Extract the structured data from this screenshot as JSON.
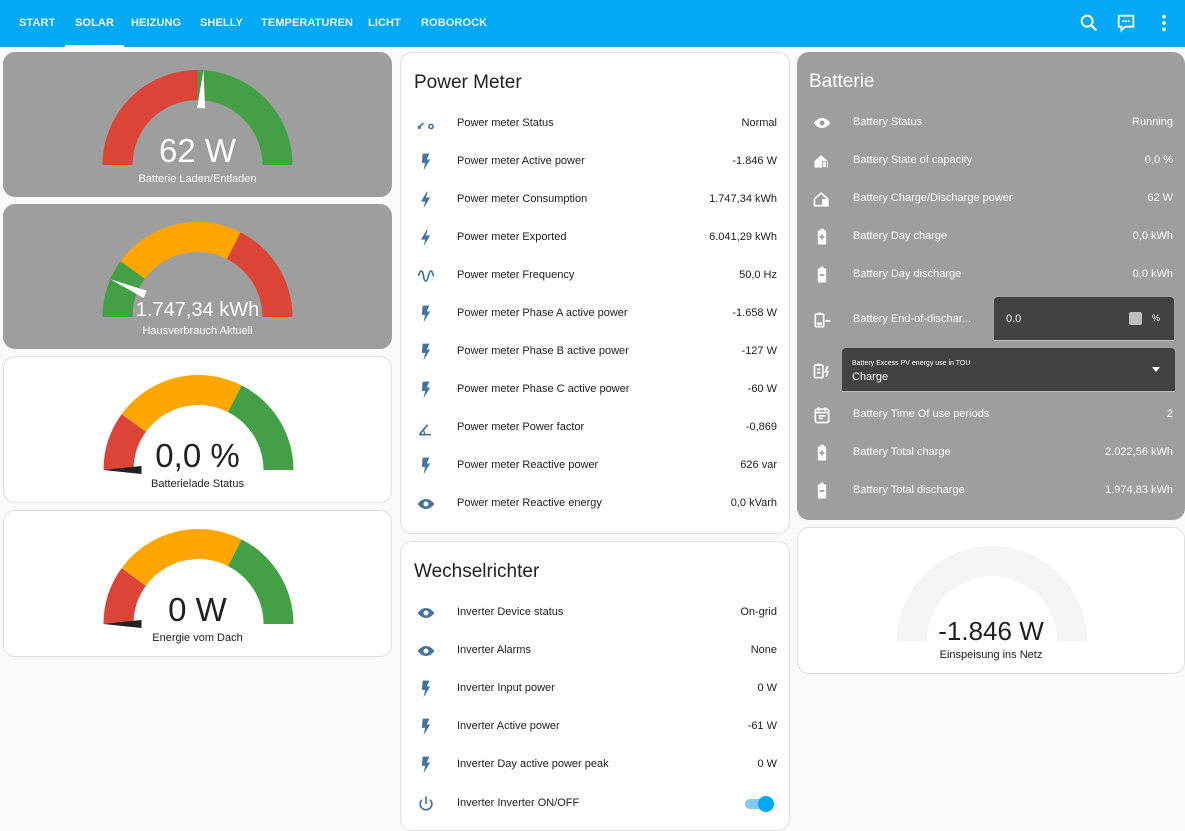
{
  "header": {
    "tabs": [
      "START",
      "SOLAR",
      "HEIZUNG",
      "SHELLY",
      "TEMPERATUREN",
      "LICHT",
      "ROBOROCK"
    ],
    "active_tab": "SOLAR",
    "icons": [
      "search-icon",
      "assist-icon",
      "more-icon"
    ]
  },
  "gauges": [
    {
      "value": "62 W",
      "name": "Batterie Laden/Entladen",
      "fraction": 0.52,
      "card": "grey"
    },
    {
      "value": "1.747,34 kWh",
      "name": "Hausverbrauch Aktuell",
      "fraction": 0.13,
      "card": "grey"
    },
    {
      "value": "0,0 %",
      "name": "Batterielade Status",
      "fraction": 0.0,
      "card": "white"
    },
    {
      "value": "0 W",
      "name": "Energie vom Dach",
      "fraction": 0.0,
      "card": "white"
    },
    {
      "value": "-1.846 W",
      "name": "Einspeisung ins Netz",
      "fraction": 0.0,
      "card": "white"
    }
  ],
  "power_meter": {
    "title": "Power Meter",
    "rows": [
      {
        "icon": "meter-status-icon",
        "label": "Power meter Status",
        "value": "Normal"
      },
      {
        "icon": "flash-icon",
        "label": "Power meter Active power",
        "value": "-1.846 W"
      },
      {
        "icon": "lightning-icon",
        "label": "Power meter Consumption",
        "value": "1.747,34 kWh"
      },
      {
        "icon": "lightning-icon",
        "label": "Power meter Exported",
        "value": "6.041,29 kWh"
      },
      {
        "icon": "sine-wave-icon",
        "label": "Power meter Frequency",
        "value": "50,0 Hz"
      },
      {
        "icon": "flash-icon",
        "label": "Power meter Phase A active power",
        "value": "-1.658 W"
      },
      {
        "icon": "flash-icon",
        "label": "Power meter Phase B active power",
        "value": "-127 W"
      },
      {
        "icon": "flash-icon",
        "label": "Power meter Phase C active power",
        "value": "-60 W"
      },
      {
        "icon": "angle-icon",
        "label": "Power meter Power factor",
        "value": "-0,869"
      },
      {
        "icon": "flash-icon",
        "label": "Power meter Reactive power",
        "value": "626 var"
      },
      {
        "icon": "eye-icon",
        "label": "Power meter Reactive energy",
        "value": "0,0 kVarh"
      }
    ]
  },
  "inverter": {
    "title": "Wechselrichter",
    "rows": [
      {
        "icon": "eye-icon",
        "label": "Inverter Device status",
        "value": "On-grid"
      },
      {
        "icon": "eye-icon",
        "label": "Inverter Alarms",
        "value": "None"
      },
      {
        "icon": "flash-icon",
        "label": "Inverter Input power",
        "value": "0 W"
      },
      {
        "icon": "flash-icon",
        "label": "Inverter Active power",
        "value": "-61 W"
      },
      {
        "icon": "flash-icon",
        "label": "Inverter Day active power peak",
        "value": "0 W"
      }
    ],
    "toggle": {
      "icon": "power-icon",
      "label": "Inverter Inverter ON/OFF",
      "state": "on"
    }
  },
  "battery": {
    "title": "Batterie",
    "status": {
      "label": "Battery Status",
      "value": "Running"
    },
    "soc": {
      "label": "Battery State of capacity",
      "value": "0,0 %"
    },
    "power": {
      "label": "Battery Charge/Discharge power",
      "value": "62 W"
    },
    "day_charge": {
      "label": "Battery Day charge",
      "value": "0,0 kWh"
    },
    "day_discharge": {
      "label": "Battery Day discharge",
      "value": "0,0 kWh"
    },
    "eod": {
      "label": "Battery End-of-dischar...",
      "value": "0.0",
      "unit": "%"
    },
    "excess": {
      "label": "Battery Excess PV energy use in TOU",
      "value": "Charge"
    },
    "tou": {
      "label": "Battery Time Of use periods",
      "value": "2"
    },
    "total_charge": {
      "label": "Battery Total charge",
      "value": "2.022,56 kWh"
    },
    "total_discharge": {
      "label": "Battery Total discharge",
      "value": "1.974,83 kWh"
    }
  },
  "colors": {
    "accent": "#03a9f4",
    "icon": "#44739e",
    "red": "#db4437",
    "orange": "#ffa600",
    "green": "#43a047",
    "grey_card": "#9e9e9e"
  }
}
